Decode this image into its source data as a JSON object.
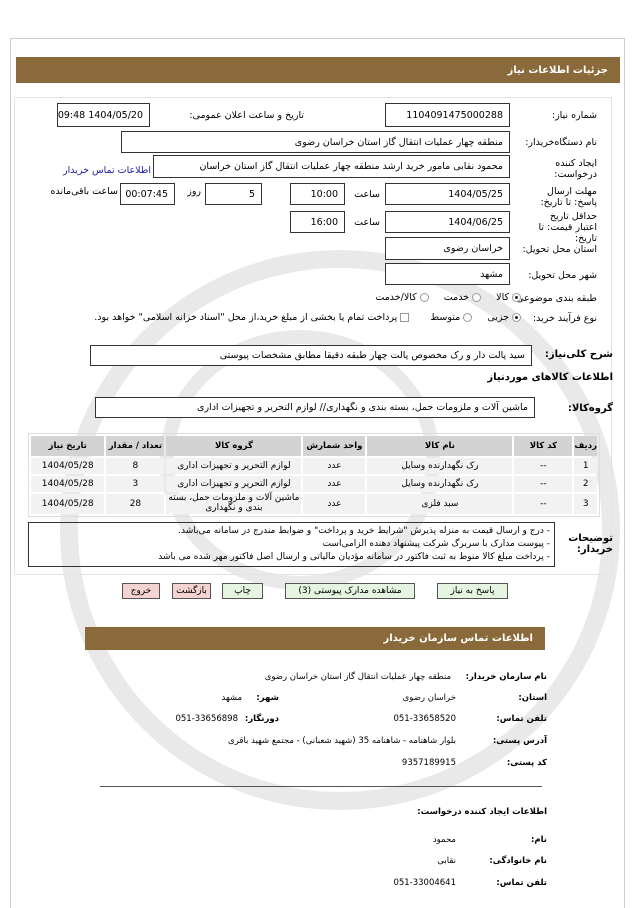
{
  "header": {
    "title": "جزئیات اطلاعات نیاز"
  },
  "form": {
    "need_number_label": "شماره نیاز:",
    "need_number": "1104091475000288",
    "announce_label": "تاریخ و ساعت اعلان عمومی:",
    "announce_value": "1404/05/20 09:48",
    "buyer_label": "نام دستگاه‌خریدار:",
    "buyer": "منطقه چهار عملیات انتقال گاز استان خراسان  رضوی",
    "creator_label": "ایجاد کننده درخواست:",
    "creator": "محمود نقابی مامور خرید ارشد منطقه چهار عملیات انتقال گاز استان خراسان",
    "contact_link": "اطلاعات تماس خریدار",
    "deadline_label": "مهلت ارسال پاسخ: تا تاریخ:",
    "deadline_date": "1404/05/25",
    "time_label": "ساعت",
    "deadline_time": "10:00",
    "day_label": "روز",
    "days": "5",
    "remaining": "00:07:45",
    "remaining_label": "ساعت باقی‌مانده",
    "validity_label": "حداقل تاریخ اعتبار قیمت: تا تاریخ:",
    "validity_date": "1404/06/25",
    "validity_time": "16:00",
    "province_label": "استان محل تحویل:",
    "province": "خراسان  رضوی",
    "city_label": "شهر محل تحویل:",
    "city": "مشهد",
    "category_label": "طبقه بندی موضوعی:",
    "category_options": [
      "کالا",
      "خدمت",
      "کالا/خدمت"
    ],
    "category_selected": "کالا",
    "process_label": "نوع فرآیند خرید:",
    "process_options": [
      "جزیی",
      "متوسط"
    ],
    "process_selected": "جزیی",
    "payment_note": "پرداخت تمام یا بخشی از مبلغ خرید،از محل \"اسناد خزانه اسلامی\" خواهد بود.",
    "description_label": "شرح کلی‌نیاز:",
    "description": "سید پالت دار و رک  مخصوص پالت چهار طبقه دقیقا مطابق  مشخصات  پیوستی",
    "goods_title": "اطلاعات کالاهای موردنیاز",
    "group_label": "گروه‌کالا:",
    "group": "ماشین آلات و ملزومات حمل، بسته بندی و نگهداری// لوازم التحریر و تجهیزات اداری"
  },
  "table": {
    "headers": [
      "ردیف",
      "کد کالا",
      "نام کالا",
      "واحد شمارش",
      "گروه کالا",
      "تعداد / مقدار",
      "تاریخ نیاز"
    ],
    "rows": [
      [
        "1",
        "--",
        "رک نگهدارنده  وسایل",
        "عدد",
        "لوازم التحریر و تجهیزات اداری",
        "8",
        "1404/05/28"
      ],
      [
        "2",
        "--",
        "رک نگهدارنده  وسایل",
        "عدد",
        "لوازم التحریر و تجهیزات اداری",
        "3",
        "1404/05/28"
      ],
      [
        "3",
        "--",
        "سبد فلزی",
        "عدد",
        "ماشین آلات و ملزومات حمل، بسته بندی و نگهداری",
        "28",
        "1404/05/28"
      ]
    ]
  },
  "notes": {
    "label": "توضیحات خریدار:",
    "lines": [
      "- درج و ارسال قیمت به منزله پذیرش \"شرایط خرید و پرداخت\" و ضوابط مندرج در سامانه می‌باشد.",
      "- پیوست مدارک با سربرگ شرکت  پیشنهاد دهنده الزامی‌است",
      "- پرداخت مبلغ کالا منوط به ثبت فاکتور در سامانه مؤدیان مالیاتی و ارسال اصل فاکتور مهر شده  می باشد"
    ]
  },
  "buttons": {
    "reply": "پاسخ به نیاز",
    "attachments": "مشاهده مدارک پیوستی (3)",
    "print": "چاپ",
    "back": "بازگشت",
    "exit": "خروج"
  },
  "contact": {
    "title": "اطلاعات تماس سازمان خریدار",
    "org_label": "نام سازمان خریدار:",
    "org": "منطقه چهار عملیات انتقال گاز   استان خراسان رضوی",
    "province_label": "استان:",
    "province": "خراسان رضوی",
    "city_label": "شهر:",
    "city": "مشهد",
    "phone_label": "تلفن تماس:",
    "phone": "051-33658520",
    "fax_label": "دورنگار:",
    "fax": "051-33656898",
    "address_label": "آدرس پستی:",
    "address": "بلوار شاهنامه - شاهنامه 35 (شهید شعبانی) - مجتمع شهید باقری",
    "postal_label": "کد پستی:",
    "postal": "9357189915",
    "creator_title": "اطلاعات ایجاد کننده درخواست:",
    "name_label": "نام:",
    "name": "محمود",
    "family_label": "نام خانوادگی:",
    "family": "نقابی",
    "creator_phone_label": "تلفن تماس:",
    "creator_phone": "051-33004641"
  },
  "colors": {
    "header_bar": "#8a6a3a",
    "green_button": "#e6f5e1",
    "red_button": "#f6d3d3"
  }
}
